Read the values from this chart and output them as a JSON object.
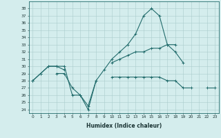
{
  "xlabel": "Humidex (Indice chaleur)",
  "x": [
    0,
    1,
    2,
    3,
    4,
    5,
    6,
    7,
    8,
    9,
    10,
    11,
    12,
    13,
    14,
    15,
    16,
    17,
    18,
    19,
    20,
    21,
    22,
    23
  ],
  "curve1": [
    28,
    29,
    30,
    30,
    30,
    26,
    26,
    24,
    28,
    29.5,
    31,
    32,
    33,
    34.5,
    37,
    38,
    37,
    33,
    32,
    30.5,
    null,
    null,
    null,
    null
  ],
  "curve2": [
    28,
    29,
    30,
    30,
    29.5,
    null,
    null,
    null,
    null,
    null,
    30.5,
    31,
    31.5,
    32,
    32,
    32.5,
    32.5,
    33,
    33,
    null,
    null,
    null,
    null,
    null
  ],
  "curve3": [
    28,
    null,
    null,
    29,
    29,
    27,
    26,
    24.5,
    28,
    null,
    28.5,
    28.5,
    28.5,
    28.5,
    28.5,
    28.5,
    28.5,
    28,
    28,
    27,
    27,
    null,
    27,
    27
  ],
  "ylim": [
    23.5,
    39.0
  ],
  "yticks": [
    24,
    25,
    26,
    27,
    28,
    29,
    30,
    31,
    32,
    33,
    34,
    35,
    36,
    37,
    38
  ],
  "xlim": [
    -0.5,
    23.5
  ],
  "bg_color": "#d4eded",
  "line_color": "#216b6b",
  "grid_color": "#aacccc",
  "label_color": "#1a3333",
  "xlabel_fontsize": 5.5,
  "tick_fontsize": 4.2
}
